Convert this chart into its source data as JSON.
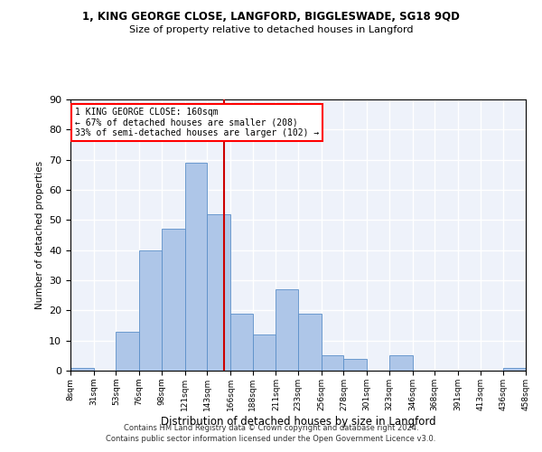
{
  "title1": "1, KING GEORGE CLOSE, LANGFORD, BIGGLESWADE, SG18 9QD",
  "title2": "Size of property relative to detached houses in Langford",
  "xlabel": "Distribution of detached houses by size in Langford",
  "ylabel": "Number of detached properties",
  "footer1": "Contains HM Land Registry data © Crown copyright and database right 2024.",
  "footer2": "Contains public sector information licensed under the Open Government Licence v3.0.",
  "annotation_line1": "1 KING GEORGE CLOSE: 160sqm",
  "annotation_line2": "← 67% of detached houses are smaller (208)",
  "annotation_line3": "33% of semi-detached houses are larger (102) →",
  "property_size": 160,
  "bar_edges": [
    8,
    31,
    53,
    76,
    98,
    121,
    143,
    166,
    188,
    211,
    233,
    256,
    278,
    301,
    323,
    346,
    368,
    391,
    413,
    436,
    458
  ],
  "bar_heights": [
    1,
    0,
    13,
    40,
    47,
    69,
    52,
    19,
    12,
    27,
    19,
    5,
    4,
    0,
    5,
    0,
    0,
    0,
    0,
    1
  ],
  "bar_color": "#aec6e8",
  "bar_edge_color": "#5b8fc9",
  "vline_color": "#cc0000",
  "vline_x": 160,
  "ylim": [
    0,
    90
  ],
  "yticks": [
    0,
    10,
    20,
    30,
    40,
    50,
    60,
    70,
    80,
    90
  ],
  "bg_color": "#eef2fa",
  "grid_color": "#ffffff"
}
